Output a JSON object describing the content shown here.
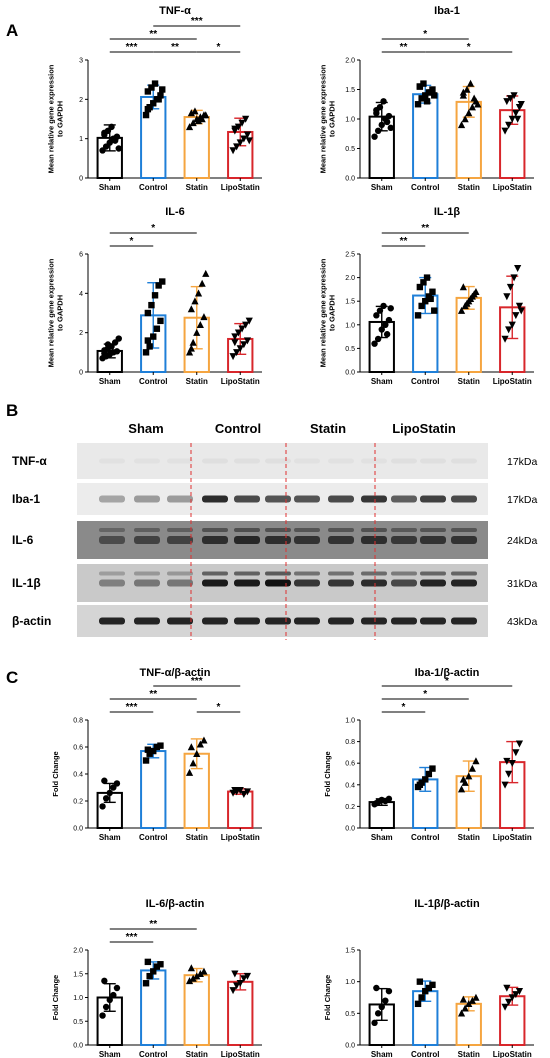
{
  "panels": {
    "a": "A",
    "b": "B",
    "c": "C"
  },
  "colors": {
    "Sham": "#000000",
    "Control": "#1f7fd8",
    "Statin": "#f5a540",
    "LipoStatin": "#d8262b"
  },
  "western_blot": {
    "groups": [
      "Sham",
      "Control",
      "Statin",
      "LipoStatin"
    ],
    "rows": [
      {
        "label": "TNF-α",
        "kda": "17kDa"
      },
      {
        "label": "Iba-1",
        "kda": "17kDa"
      },
      {
        "label": "IL-6",
        "kda": "24kDa"
      },
      {
        "label": "IL-1β",
        "kda": "31kDa"
      },
      {
        "label": "β-actin",
        "kda": "43kDa"
      }
    ]
  },
  "chart_data": [
    {
      "id": "tnf",
      "type": "bar",
      "title": "TNF-α",
      "ylabel": "Mean relative gene expression to GAPDH",
      "ylim": [
        0,
        3
      ],
      "yticks": [
        0,
        1,
        2,
        3
      ],
      "categories": [
        "Sham",
        "Control",
        "Statin",
        "LipoStatin"
      ],
      "values": [
        1.02,
        2.06,
        1.55,
        1.17
      ],
      "errors": [
        0.33,
        0.3,
        0.17,
        0.35
      ],
      "points": [
        [
          0.7,
          0.8,
          0.9,
          1.0,
          1.05,
          1.1,
          1.2,
          1.3,
          0.95,
          0.75,
          1.15
        ],
        [
          1.6,
          1.8,
          1.9,
          2.0,
          2.1,
          2.2,
          2.3,
          2.4,
          2.0,
          2.25,
          1.75
        ],
        [
          1.3,
          1.4,
          1.5,
          1.55,
          1.6,
          1.65,
          1.7,
          1.45,
          1.5,
          1.6
        ],
        [
          0.7,
          0.8,
          0.9,
          1.0,
          1.1,
          1.2,
          1.3,
          1.4,
          1.5,
          0.95,
          1.25
        ]
      ],
      "significance": [
        {
          "from": 0,
          "to": 1,
          "label": "***",
          "level": 0
        },
        {
          "from": 1,
          "to": 2,
          "label": "**",
          "level": 0
        },
        {
          "from": 2,
          "to": 3,
          "label": "*",
          "level": 0
        },
        {
          "from": 0,
          "to": 2,
          "label": "**",
          "level": 1
        },
        {
          "from": 1,
          "to": 3,
          "label": "***",
          "level": 2
        }
      ]
    },
    {
      "id": "iba",
      "type": "bar",
      "title": "Iba-1",
      "ylabel": "Mean relative gene expression to GAPDH",
      "ylim": [
        0,
        2
      ],
      "yticks": [
        0.0,
        0.5,
        1.0,
        1.5,
        2.0
      ],
      "categories": [
        "Sham",
        "Control",
        "Statin",
        "LipoStatin"
      ],
      "values": [
        1.04,
        1.42,
        1.29,
        1.15
      ],
      "errors": [
        0.24,
        0.15,
        0.26,
        0.24
      ],
      "points": [
        [
          0.7,
          0.8,
          0.9,
          1.0,
          1.05,
          1.1,
          1.2,
          1.3,
          0.95,
          0.85,
          1.15
        ],
        [
          1.25,
          1.35,
          1.4,
          1.45,
          1.5,
          1.55,
          1.6,
          1.3,
          1.45,
          1.4,
          1.55
        ],
        [
          0.9,
          1.0,
          1.1,
          1.2,
          1.3,
          1.4,
          1.5,
          1.6,
          1.35,
          1.25,
          1.45
        ],
        [
          0.8,
          0.9,
          1.0,
          1.1,
          1.2,
          1.3,
          1.35,
          1.4,
          1.0,
          1.25
        ]
      ],
      "significance": [
        {
          "from": 0,
          "to": 1,
          "label": "**",
          "level": 0
        },
        {
          "from": 1,
          "to": 3,
          "label": "*",
          "level": 0
        },
        {
          "from": 0,
          "to": 2,
          "label": "*",
          "level": 1
        }
      ]
    },
    {
      "id": "il6",
      "type": "bar",
      "title": "IL-6",
      "ylabel": "Mean relative gene expression to GAPDH",
      "ylim": [
        0,
        6
      ],
      "yticks": [
        0,
        2,
        4,
        6
      ],
      "categories": [
        "Sham",
        "Control",
        "Statin",
        "LipoStatin"
      ],
      "values": [
        1.07,
        2.88,
        2.76,
        1.68
      ],
      "errors": [
        0.35,
        1.66,
        1.58,
        0.78
      ],
      "points": [
        [
          0.7,
          0.8,
          0.9,
          1.0,
          1.05,
          1.1,
          1.2,
          1.3,
          1.5,
          1.7,
          0.95,
          1.4
        ],
        [
          1.0,
          1.3,
          1.8,
          2.2,
          2.6,
          3.0,
          3.4,
          3.9,
          4.4,
          4.6,
          1.6
        ],
        [
          1.0,
          1.5,
          2.0,
          2.4,
          2.8,
          3.2,
          3.6,
          4.0,
          4.5,
          5.0,
          1.2
        ],
        [
          0.8,
          1.0,
          1.2,
          1.4,
          1.6,
          1.8,
          2.0,
          2.2,
          2.4,
          2.6,
          1.5
        ]
      ],
      "significance": [
        {
          "from": 0,
          "to": 1,
          "label": "*",
          "level": 0
        },
        {
          "from": 0,
          "to": 2,
          "label": "*",
          "level": 1
        }
      ]
    },
    {
      "id": "il1b",
      "type": "bar",
      "title": "IL-1β",
      "ylabel": "Mean relative gene expression to GAPDH",
      "ylim": [
        0,
        2.5
      ],
      "yticks": [
        0.0,
        0.5,
        1.0,
        1.5,
        2.0,
        2.5
      ],
      "categories": [
        "Sham",
        "Control",
        "Statin",
        "LipoStatin"
      ],
      "values": [
        1.06,
        1.62,
        1.57,
        1.37
      ],
      "errors": [
        0.33,
        0.38,
        0.24,
        0.66
      ],
      "points": [
        [
          0.6,
          0.7,
          0.9,
          1.0,
          1.1,
          1.2,
          1.3,
          1.4,
          0.8,
          1.35
        ],
        [
          1.2,
          1.4,
          1.5,
          1.6,
          1.7,
          1.8,
          1.9,
          2.0,
          1.55,
          1.3
        ],
        [
          1.3,
          1.4,
          1.5,
          1.6,
          1.7,
          1.8,
          1.45,
          1.55,
          1.65
        ],
        [
          0.7,
          0.9,
          1.0,
          1.2,
          1.4,
          1.6,
          1.8,
          2.0,
          2.2,
          1.3
        ]
      ],
      "significance": [
        {
          "from": 0,
          "to": 1,
          "label": "**",
          "level": 0
        },
        {
          "from": 0,
          "to": 2,
          "label": "**",
          "level": 1
        }
      ]
    },
    {
      "id": "tnfb",
      "type": "bar",
      "title": "TNF-α/β-actin",
      "ylabel": "Fold Change",
      "ylim": [
        0,
        0.8
      ],
      "yticks": [
        0.0,
        0.2,
        0.4,
        0.6,
        0.8
      ],
      "categories": [
        "Sham",
        "Control",
        "Statin",
        "LipoStatin"
      ],
      "values": [
        0.26,
        0.57,
        0.55,
        0.27
      ],
      "errors": [
        0.07,
        0.05,
        0.11,
        0.02
      ],
      "points": [
        [
          0.16,
          0.22,
          0.26,
          0.3,
          0.33,
          0.35
        ],
        [
          0.5,
          0.55,
          0.57,
          0.6,
          0.61,
          0.58
        ],
        [
          0.41,
          0.48,
          0.55,
          0.62,
          0.65,
          0.6
        ],
        [
          0.26,
          0.27,
          0.28,
          0.25,
          0.27,
          0.28
        ]
      ],
      "significance": [
        {
          "from": 0,
          "to": 1,
          "label": "***",
          "level": 0
        },
        {
          "from": 2,
          "to": 3,
          "label": "*",
          "level": 0
        },
        {
          "from": 0,
          "to": 2,
          "label": "**",
          "level": 1
        },
        {
          "from": 1,
          "to": 3,
          "label": "***",
          "level": 2
        }
      ]
    },
    {
      "id": "ibab",
      "type": "bar",
      "title": "Iba-1/β-actin",
      "ylabel": "Fold Change",
      "ylim": [
        0,
        1.0
      ],
      "yticks": [
        0.0,
        0.2,
        0.4,
        0.6,
        0.8,
        1.0
      ],
      "categories": [
        "Sham",
        "Control",
        "Statin",
        "LipoStatin"
      ],
      "values": [
        0.24,
        0.45,
        0.48,
        0.61
      ],
      "errors": [
        0.03,
        0.11,
        0.14,
        0.19
      ],
      "points": [
        [
          0.22,
          0.24,
          0.26,
          0.25,
          0.27,
          0.23
        ],
        [
          0.38,
          0.42,
          0.45,
          0.5,
          0.55,
          0.4
        ],
        [
          0.36,
          0.42,
          0.48,
          0.55,
          0.62,
          0.45
        ],
        [
          0.4,
          0.5,
          0.6,
          0.7,
          0.78,
          0.62
        ]
      ],
      "significance": [
        {
          "from": 0,
          "to": 1,
          "label": "*",
          "level": 0
        },
        {
          "from": 0,
          "to": 2,
          "label": "*",
          "level": 1
        },
        {
          "from": 0,
          "to": 3,
          "label": "*",
          "level": 2
        }
      ]
    },
    {
      "id": "il6b",
      "type": "bar",
      "title": "IL-6/β-actin",
      "ylabel": "Fold Change",
      "ylim": [
        0,
        2.0
      ],
      "yticks": [
        0.0,
        0.5,
        1.0,
        1.5,
        2.0
      ],
      "categories": [
        "Sham",
        "Control",
        "Statin",
        "LipoStatin"
      ],
      "values": [
        1.0,
        1.57,
        1.47,
        1.33
      ],
      "errors": [
        0.29,
        0.18,
        0.14,
        0.17
      ],
      "points": [
        [
          0.62,
          0.8,
          0.95,
          1.05,
          1.2,
          1.35
        ],
        [
          1.3,
          1.45,
          1.55,
          1.65,
          1.7,
          1.75
        ],
        [
          1.35,
          1.4,
          1.45,
          1.5,
          1.55,
          1.62
        ],
        [
          1.15,
          1.25,
          1.3,
          1.4,
          1.45,
          1.5
        ]
      ],
      "significance": [
        {
          "from": 0,
          "to": 1,
          "label": "***",
          "level": 0
        },
        {
          "from": 0,
          "to": 2,
          "label": "**",
          "level": 1
        }
      ]
    },
    {
      "id": "il1bb",
      "type": "bar",
      "title": "IL-1β/β-actin",
      "ylabel": "Fold Change",
      "ylim": [
        0,
        1.5
      ],
      "yticks": [
        0.0,
        0.5,
        1.0,
        1.5
      ],
      "categories": [
        "Sham",
        "Control",
        "Statin",
        "LipoStatin"
      ],
      "values": [
        0.64,
        0.85,
        0.65,
        0.77
      ],
      "errors": [
        0.25,
        0.16,
        0.11,
        0.14
      ],
      "points": [
        [
          0.35,
          0.5,
          0.6,
          0.7,
          0.85,
          0.9
        ],
        [
          0.65,
          0.75,
          0.85,
          0.9,
          0.95,
          1.0
        ],
        [
          0.5,
          0.58,
          0.65,
          0.7,
          0.75,
          0.72
        ],
        [
          0.6,
          0.68,
          0.75,
          0.8,
          0.85,
          0.9
        ]
      ],
      "significance": []
    }
  ]
}
